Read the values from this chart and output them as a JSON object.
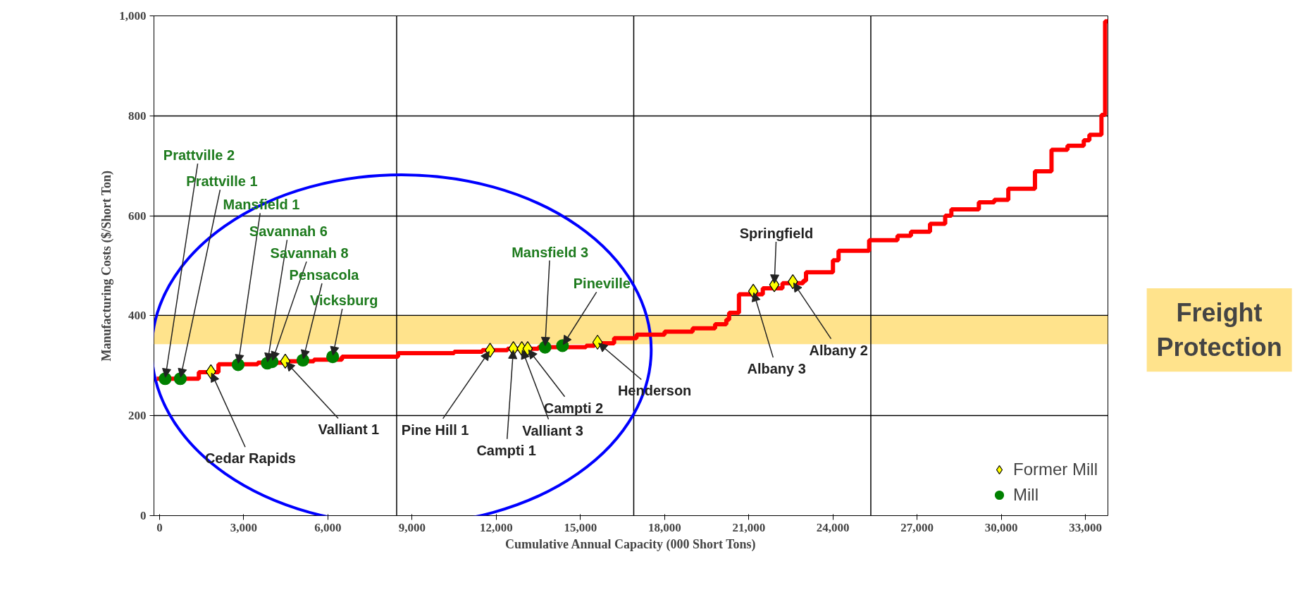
{
  "chart_data": {
    "type": "step",
    "xlabel": "Cumulative Annual Capacity (000 Short Tons)",
    "ylabel": "Manufacturing Costs ($/Short Ton)",
    "xlim": [
      -200,
      33800
    ],
    "ylim": [
      0,
      1000
    ],
    "xticks": [
      0,
      {
        "value": 3000,
        "label": "3,000"
      },
      {
        "value": 6000,
        "label": "6,000"
      },
      {
        "value": 9000,
        "label": "9,000"
      },
      {
        "value": 12000,
        "label": "12,000"
      },
      {
        "value": 15000,
        "label": "15,000"
      },
      {
        "value": 18000,
        "label": "18,000"
      },
      {
        "value": 21000,
        "label": "21,000"
      },
      {
        "value": 24000,
        "label": "24,000"
      },
      {
        "value": 27000,
        "label": "27,000"
      },
      {
        "value": 30000,
        "label": "30,000"
      },
      {
        "value": 33000,
        "label": "33,000"
      }
    ],
    "yticks": [
      0,
      200,
      400,
      600,
      800,
      {
        "value": 1000,
        "label": "1,000"
      }
    ],
    "grid": "y",
    "legend": "bottom right",
    "series": [
      {
        "color": "#ff0000",
        "marker": "none",
        "x": [
          -100,
          1400,
          2100,
          3500,
          4600,
          5500,
          6500,
          8500,
          10500,
          11500,
          12400,
          13500,
          15200,
          15500,
          16200,
          17000,
          18000,
          19000,
          19800,
          20200,
          20300,
          20650,
          21500,
          22200,
          22940,
          23040,
          24000,
          24200,
          25290,
          26300,
          26780,
          27460,
          28000,
          28220,
          29200,
          29750,
          30250,
          31200,
          31790,
          32360,
          32940,
          33140,
          33570,
          33700,
          33800
        ],
        "values": [
          274,
          287,
          303,
          306,
          309,
          312,
          318,
          325,
          328,
          331,
          334,
          337,
          340,
          345,
          355,
          362,
          368,
          375,
          383,
          392,
          406,
          443,
          455,
          465,
          470,
          487,
          511,
          530,
          551,
          560,
          568,
          584,
          600,
          613,
          627,
          632,
          654,
          689,
          732,
          740,
          751,
          762,
          802,
          989,
          989
        ]
      },
      {
        "type": "scatter",
        "name": "Former Mill",
        "color": "#ffff00",
        "marker": "diamond",
        "x": [
          1830,
          4480,
          11780,
          12610,
          12910,
          13120,
          15610,
          21160,
          21910,
          22570
        ],
        "values": [
          288,
          309,
          331,
          334,
          334,
          334,
          347,
          449,
          462,
          468
        ]
      },
      {
        "type": "scatter",
        "name": "Mill",
        "color": "#008000",
        "marker": "circle",
        "x": [
          200,
          740,
          2800,
          3840,
          4010,
          5110,
          6170,
          13740,
          14360
        ],
        "values": [
          274,
          274,
          302,
          305,
          308,
          311,
          318,
          337,
          340
        ]
      }
    ],
    "ref_lines": [
      {
        "axis": "x",
        "value": 8450,
        "color": "#000000"
      },
      {
        "axis": "x",
        "value": 16900,
        "color": "#000000"
      },
      {
        "axis": "x",
        "value": 25350,
        "color": "#000000"
      }
    ],
    "bands": [
      {
        "axis": "y",
        "from": 343,
        "to": 400,
        "label": "Freight Protection",
        "color": "#ffd966"
      }
    ],
    "annotations": [
      {
        "text": "Prattville 2",
        "x": 200,
        "y": 274
      },
      {
        "text": "Prattville 1",
        "x": 740,
        "y": 274
      },
      {
        "text": "Mansfield 1",
        "x": 2800,
        "y": 302
      },
      {
        "text": "Savannah 6",
        "x": 3840,
        "y": 305
      },
      {
        "text": "Savannah 8",
        "x": 4010,
        "y": 308
      },
      {
        "text": "Pensacola",
        "x": 5110,
        "y": 311
      },
      {
        "text": "Vicksburg",
        "x": 6170,
        "y": 318
      },
      {
        "text": "Mansfield 3",
        "x": 13740,
        "y": 337
      },
      {
        "text": "Pineville",
        "x": 14360,
        "y": 340
      },
      {
        "text": "Cedar Rapids",
        "x": 1830,
        "y": 288
      },
      {
        "text": "Valliant 1",
        "x": 4480,
        "y": 309
      },
      {
        "text": "Pine Hill 1",
        "x": 11780,
        "y": 331
      },
      {
        "text": "Campti 1",
        "x": 12610,
        "y": 334
      },
      {
        "text": "Valliant 3",
        "x": 12910,
        "y": 334
      },
      {
        "text": "Campti 2",
        "x": 13120,
        "y": 334
      },
      {
        "text": "Henderson",
        "x": 15610,
        "y": 347
      },
      {
        "text": "Springfield",
        "x": 21910,
        "y": 462
      },
      {
        "text": "Albany 3",
        "x": 21160,
        "y": 449
      },
      {
        "text": "Albany 2",
        "x": 22570,
        "y": 468
      }
    ]
  }
}
